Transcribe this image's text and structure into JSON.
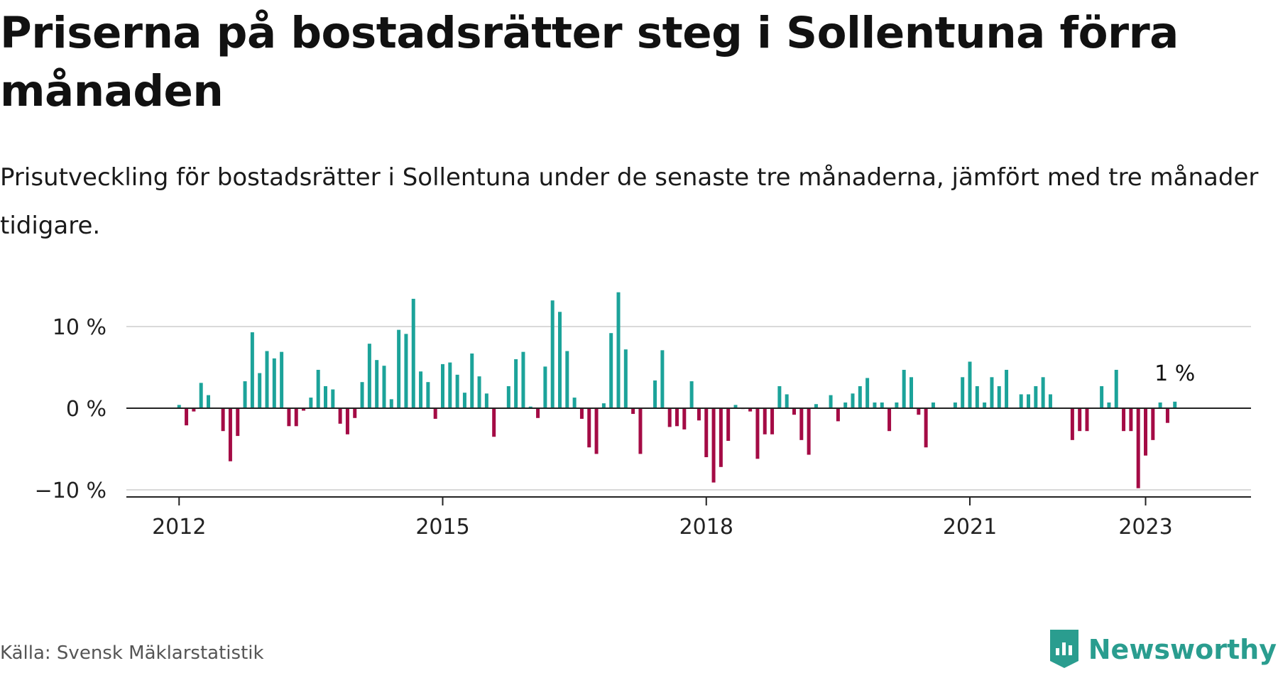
{
  "header": {
    "title": "Priserna på bostadsrätter steg i Sollentuna förra månaden",
    "subtitle": "Prisutveckling för bostadsrätter i Sollentuna under de senaste tre månaderna, jämfört med tre månader tidigare."
  },
  "footer": {
    "source": "Källa: Svensk Mäklarstatistik",
    "brand": "Newsworthy",
    "brand_icon": "newsworthy-logo-icon"
  },
  "colors": {
    "positive": "#1ca39a",
    "negative": "#a40b45",
    "grid": "#d9d9d9",
    "axis": "#222222"
  },
  "chart_data": {
    "type": "bar",
    "title": "",
    "xlabel": "",
    "ylabel": "",
    "ylim": [
      -11,
      11
    ],
    "yticks": [
      {
        "value": 10,
        "label": "10 %"
      },
      {
        "value": 0,
        "label": "0 %"
      },
      {
        "value": -10,
        "label": "−10 %"
      }
    ],
    "xticks": [
      {
        "value": 2012.0,
        "label": "2012"
      },
      {
        "value": 2015.0,
        "label": "2015"
      },
      {
        "value": 2018.0,
        "label": "2018"
      },
      {
        "value": 2021.0,
        "label": "2021"
      },
      {
        "value": 2023.0,
        "label": "2023"
      }
    ],
    "xlim": [
      2011.4,
      2024.2
    ],
    "grid": true,
    "annotation": {
      "text": "1 %",
      "target": "last"
    },
    "start": {
      "year": 2012,
      "month": 1
    },
    "values": [
      0.4,
      -2.1,
      -0.4,
      3.1,
      1.6,
      0,
      -2.8,
      -6.5,
      -3.4,
      3.3,
      9.3,
      4.3,
      7.0,
      6.1,
      6.9,
      -2.2,
      -2.2,
      -0.3,
      1.3,
      4.7,
      2.7,
      2.3,
      -1.9,
      -3.2,
      -1.2,
      3.2,
      7.9,
      5.9,
      5.2,
      1.1,
      9.6,
      9.1,
      13.4,
      4.5,
      3.2,
      -1.3,
      5.4,
      5.6,
      4.1,
      1.9,
      6.7,
      3.9,
      1.8,
      -3.5,
      0,
      2.7,
      6.0,
      6.9,
      0.2,
      -1.2,
      5.1,
      13.2,
      11.8,
      7.0,
      1.3,
      -1.3,
      -4.8,
      -5.6,
      0.6,
      9.2,
      14.2,
      7.2,
      -0.7,
      -5.6,
      0,
      3.4,
      7.1,
      -2.3,
      -2.2,
      -2.6,
      3.3,
      -1.5,
      -6.0,
      -9.1,
      -7.2,
      -4.0,
      0.4,
      -0.1,
      -0.4,
      -6.2,
      -3.2,
      -3.2,
      2.7,
      1.7,
      -0.8,
      -3.9,
      -5.7,
      0.5,
      0,
      1.6,
      -1.6,
      0.7,
      1.8,
      2.7,
      3.7,
      0.7,
      0.7,
      -2.8,
      0.7,
      4.7,
      3.8,
      -0.8,
      -4.8,
      0.7,
      0,
      0,
      0.7,
      3.8,
      5.7,
      2.7,
      0.7,
      3.8,
      2.7,
      4.7,
      0,
      1.7,
      1.7,
      2.7,
      3.8,
      1.7,
      0,
      0,
      -3.9,
      -2.8,
      -2.8,
      0,
      2.7,
      0.7,
      4.7,
      -2.8,
      -2.8,
      -9.8,
      -5.8,
      -3.9,
      0.7,
      -1.8,
      0.8
    ]
  }
}
